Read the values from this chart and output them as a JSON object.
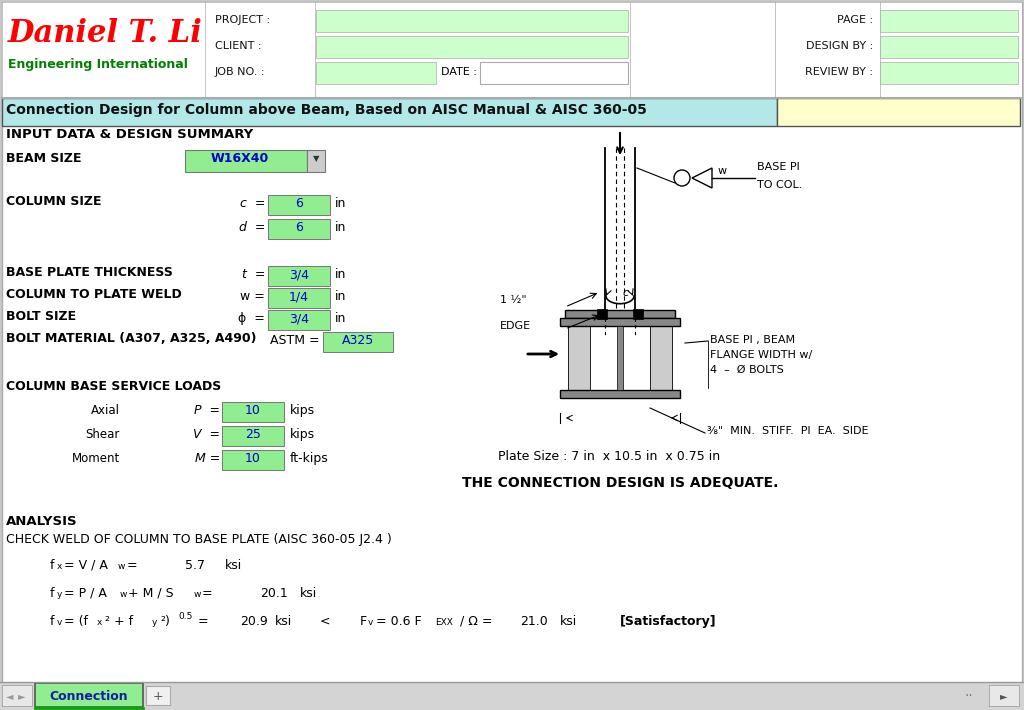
{
  "title": "Connection Design for Column above Beam, Based on AISC Manual & AISC 360-05",
  "company_name": "Daniel T. Li",
  "company_sub": "Engineering International",
  "header_labels": [
    "PROJECT :",
    "CLIENT :",
    "JOB NO. :"
  ],
  "header_right_labels": [
    "PAGE :",
    "DESIGN BY :",
    "REVIEW BY :"
  ],
  "date_label": "DATE :",
  "section1_title": "INPUT DATA & DESIGN SUMMARY",
  "beam_size_label": "BEAM SIZE",
  "beam_size_val": "W16X40",
  "col_size_label": "COLUMN SIZE",
  "col_c_val": "6",
  "col_d_val": "6",
  "col_unit": "in",
  "bp_thick_label": "BASE PLATE THICKNESS",
  "bp_thick_val": "3/4",
  "col_weld_label": "COLUMN TO PLATE WELD",
  "col_weld_val": "1/4",
  "bolt_size_label": "BOLT SIZE",
  "bolt_size_val": "3/4",
  "bolt_mat_label": "BOLT MATERIAL (A307, A325, A490)",
  "bolt_mat_val": "A325",
  "loads_label": "COLUMN BASE SERVICE LOADS",
  "axial_label": "Axial",
  "axial_val": "10",
  "axial_unit": "kips",
  "shear_label": "Shear",
  "shear_val": "25",
  "shear_unit": "kips",
  "moment_label": "Moment",
  "moment_val": "10",
  "moment_unit": "ft-kips",
  "plate_size_text": "Plate Size : 7 in  x 10.5 in  x 0.75 in",
  "adequate_text": "THE CONNECTION DESIGN IS ADEQUATE.",
  "analysis_title": "ANALYSIS",
  "check_weld_title": "CHECK WELD OF COLUMN TO BASE PLATE (AISC 360-05 J2.4 )",
  "fx_val": "5.7",
  "fx_unit": "ksi",
  "fy_val": "20.1",
  "fy_unit": "ksi",
  "fv_val": "20.9",
  "fv_unit": "ksi",
  "fv_rhs_val": "21.0",
  "fv_rhs_unit": "ksi",
  "fv_result": "[Satisfactory]",
  "green_fill": "#90ee90",
  "light_green_header": "#ccffcc",
  "light_yellow": "#ffffcc",
  "title_bg": "#b3e8e8",
  "tab_color": "#90ee90",
  "tab_text_color": "#1a1aaa",
  "tab_label": "Connection"
}
